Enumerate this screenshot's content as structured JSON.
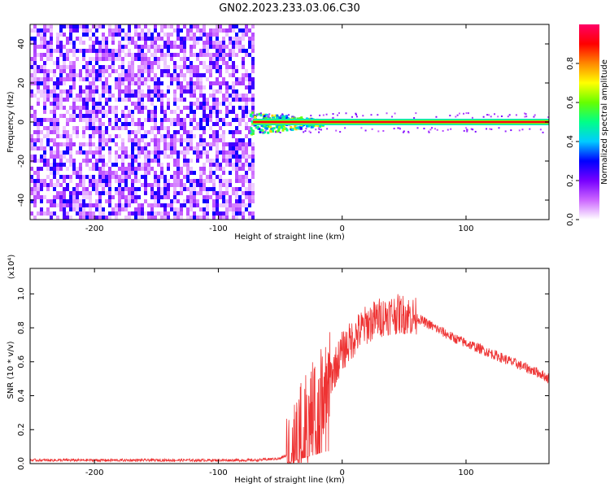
{
  "title": "GN02.2023.233.03.06.C30",
  "chart_data": [
    {
      "type": "heatmap",
      "xlabel": "Height of straight line (km)",
      "ylabel": "Frequency (Hz)",
      "xlim": [
        -252,
        167
      ],
      "ylim": [
        -50,
        50
      ],
      "xticks": [
        -200,
        -100,
        0,
        100
      ],
      "yticks": [
        -40,
        -20,
        0,
        20,
        40
      ],
      "colorbar": {
        "label": "Normalized spectral amplitude",
        "range": [
          0,
          1
        ],
        "ticks": [
          0.0,
          0.2,
          0.4,
          0.6,
          0.8
        ],
        "colormap": [
          "#ffffff",
          "#cc66ff",
          "#7700ff",
          "#0000ff",
          "#00ccff",
          "#00ff88",
          "#66ff00",
          "#ffff00",
          "#ff8800",
          "#ff0000",
          "#ff0066"
        ]
      },
      "regions": [
        {
          "x": [
            -252,
            -72
          ],
          "description_level": 0.18
        },
        {
          "x": [
            -72,
            167
          ],
          "signal_frequency_hz": 0,
          "description_level": 0.9
        }
      ]
    },
    {
      "type": "line",
      "xlabel": "Height of straight line (km)",
      "ylabel": "SNR (10 * v/v)",
      "yscale_label": "(x10⁴)",
      "xlim": [
        -252,
        167
      ],
      "ylim": [
        0,
        1.15
      ],
      "xticks": [
        -200,
        -100,
        0,
        100
      ],
      "yticks": [
        0.0,
        0.2,
        0.4,
        0.6,
        0.8,
        1.0
      ],
      "color": "#ee3333",
      "series": [
        {
          "x": [
            -252,
            -200,
            -150,
            -100,
            -70,
            -50,
            -42,
            -38,
            -32,
            -25,
            -20,
            -15,
            -10,
            -5,
            0,
            10,
            20,
            30,
            40,
            50,
            60,
            70,
            80,
            90,
            100,
            110,
            120,
            130,
            140,
            150,
            160,
            167
          ],
          "values": [
            0.02,
            0.02,
            0.02,
            0.02,
            0.02,
            0.03,
            0.06,
            0.12,
            0.22,
            0.3,
            0.38,
            0.45,
            0.5,
            0.58,
            0.66,
            0.75,
            0.82,
            0.86,
            0.88,
            0.88,
            0.86,
            0.82,
            0.78,
            0.74,
            0.71,
            0.68,
            0.65,
            0.62,
            0.59,
            0.56,
            0.53,
            0.5
          ]
        }
      ]
    }
  ]
}
